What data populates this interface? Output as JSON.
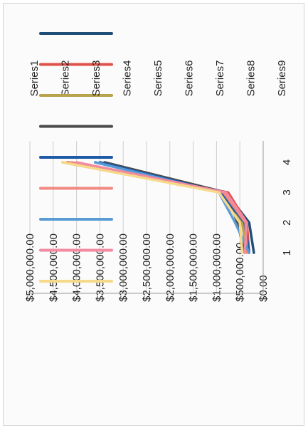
{
  "chart_data": {
    "type": "line",
    "rotated": "90deg clockwise (printed sideways)",
    "x": [
      1,
      2,
      3,
      4
    ],
    "y_ticks": [
      "$0.00",
      "$500,000.00",
      "$1,000,000.00",
      "$1,500,000.00",
      "$2,000,000.00",
      "$2,500,000.00",
      "$3,000,000.00",
      "$3,500,000.00",
      "$4,000,000.00",
      "$4,500,000.00",
      "$5,000,000.00"
    ],
    "ylim": [
      0,
      5000000
    ],
    "grid": true,
    "legend_position": "right",
    "series": [
      {
        "name": "Series1",
        "color": "#1f4e79",
        "values": [
          200000,
          300000,
          800000,
          3600000
        ]
      },
      {
        "name": "Series2",
        "color": "#e0524a",
        "values": [
          300000,
          350000,
          750000,
          4200000
        ]
      },
      {
        "name": "Series3",
        "color": "#b8a24c",
        "values": [
          350000,
          450000,
          900000,
          4300000
        ]
      },
      {
        "name": "Series4",
        "color": "#4a4a4a",
        "values": [
          400000,
          550000,
          800000,
          3400000
        ]
      },
      {
        "name": "Series5",
        "color": "#1e5aa8",
        "values": [
          300000,
          400000,
          900000,
          3500000
        ]
      },
      {
        "name": "Series6",
        "color": "#f08a82",
        "values": [
          350000,
          380000,
          850000,
          4100000
        ]
      },
      {
        "name": "Series7",
        "color": "#5b9bd5",
        "values": [
          300000,
          600000,
          950000,
          3600000
        ]
      },
      {
        "name": "Series8",
        "color": "#f28aa0",
        "values": [
          400000,
          350000,
          800000,
          4000000
        ]
      },
      {
        "name": "Series9",
        "color": "#f6d98a",
        "values": [
          450000,
          500000,
          950000,
          4300000
        ]
      }
    ]
  }
}
